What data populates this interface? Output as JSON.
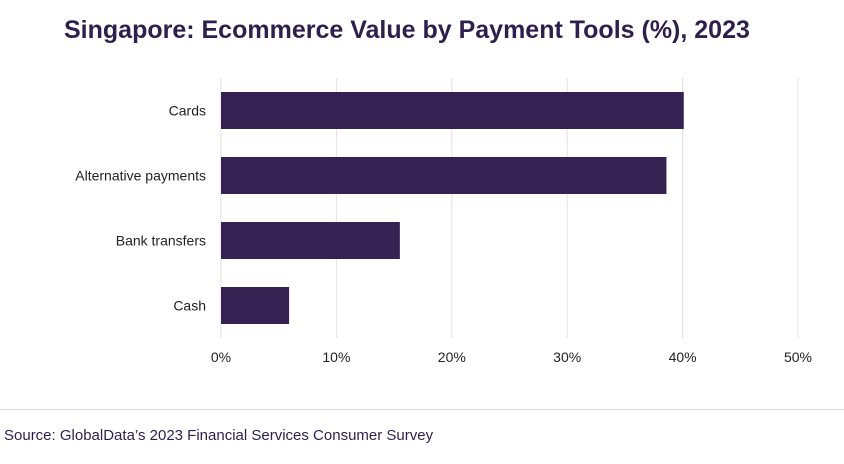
{
  "title": "Singapore: Ecommerce Value by Payment Tools (%), 2023",
  "source": "Source: GlobalData’s 2023 Financial Services Consumer Survey",
  "colors": {
    "bar": "#352253",
    "grid": "#e2e2e2",
    "title": "#2e1f4d"
  },
  "chart_data": {
    "type": "bar",
    "orientation": "horizontal",
    "title": "Singapore: Ecommerce Value by Payment Tools (%), 2023",
    "categories": [
      "Cards",
      "Alternative payments",
      "Bank transfers",
      "Cash"
    ],
    "values": [
      40.1,
      38.6,
      15.5,
      5.9
    ],
    "xlabel": "",
    "ylabel": "",
    "xlim": [
      0,
      50
    ],
    "xticks": [
      0,
      10,
      20,
      30,
      40,
      50
    ],
    "xtick_labels": [
      "0%",
      "10%",
      "20%",
      "30%",
      "40%",
      "50%"
    ],
    "grid": true,
    "legend": "none"
  }
}
